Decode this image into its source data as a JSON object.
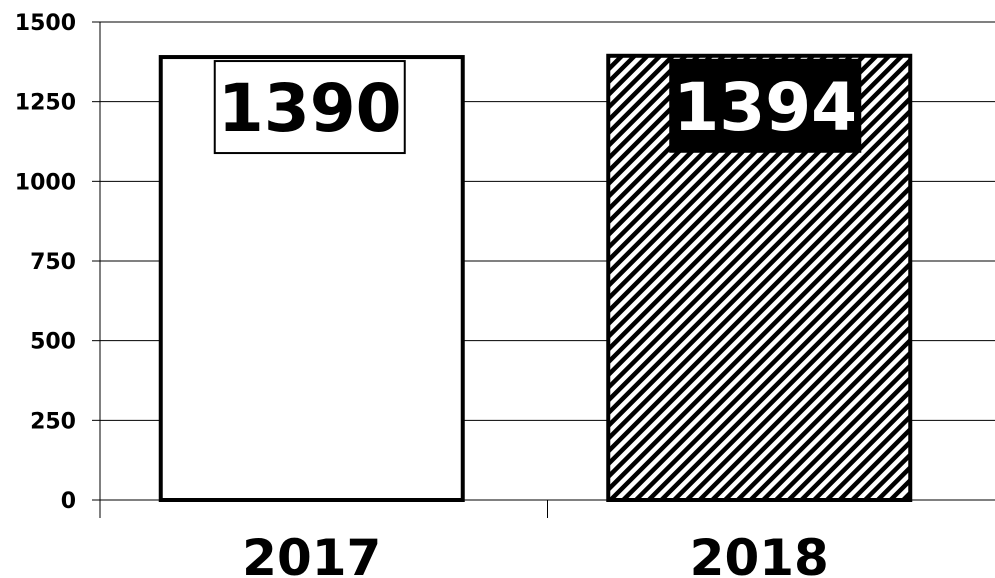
{
  "chart_data": {
    "type": "bar",
    "categories": [
      "2017",
      "2018"
    ],
    "values": [
      1390,
      1394
    ],
    "data_labels": [
      "1390",
      "1394"
    ],
    "ylim": [
      0,
      1500
    ],
    "yticks": [
      0,
      250,
      500,
      750,
      1000,
      1250,
      1500
    ],
    "ytick_labels": [
      "0",
      "250",
      "500",
      "750",
      "1000",
      "1250",
      "1500"
    ],
    "grid": true,
    "bar_fills": [
      "solid-white",
      "diagonal-hatch"
    ],
    "colors": {
      "bar_outline": "#000000",
      "gridline": "#000000",
      "background": "#ffffff"
    }
  }
}
